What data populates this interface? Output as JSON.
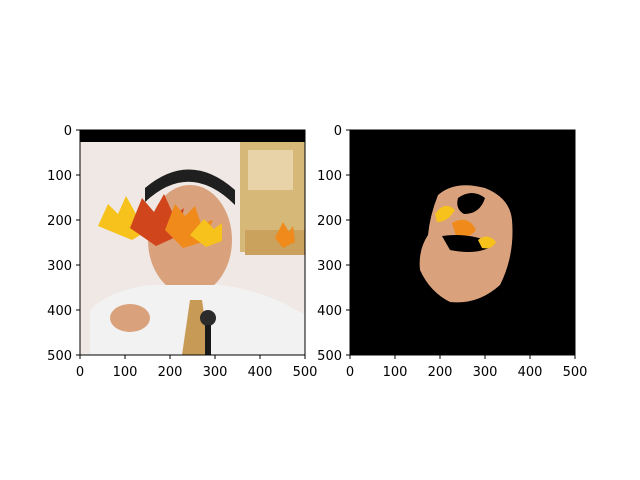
{
  "figure": {
    "panels": [
      {
        "name": "left-panel",
        "image_label": "photo with leaf overlay",
        "x_ticks": [
          "0",
          "100",
          "200",
          "300",
          "400",
          "500"
        ],
        "y_ticks": [
          "0",
          "100",
          "200",
          "300",
          "400",
          "500"
        ]
      },
      {
        "name": "right-panel",
        "image_label": "masked face region",
        "x_ticks": [
          "0",
          "100",
          "200",
          "300",
          "400",
          "500"
        ],
        "y_ticks": [
          "0",
          "100",
          "200",
          "300",
          "400",
          "500"
        ]
      }
    ],
    "colors": {
      "background": "#ffffff",
      "black": "#000000",
      "skin": "#d9a27c",
      "shirt": "#f2f2f2",
      "hair": "#1f1f1f",
      "leaf_orange": "#f08a1a",
      "leaf_yellow": "#f6c21b",
      "leaf_red": "#d0451b",
      "emblem": "#d6b878"
    },
    "icons": [
      "image-axes-icon",
      "leaf-icon",
      "microphone-icon"
    ]
  }
}
